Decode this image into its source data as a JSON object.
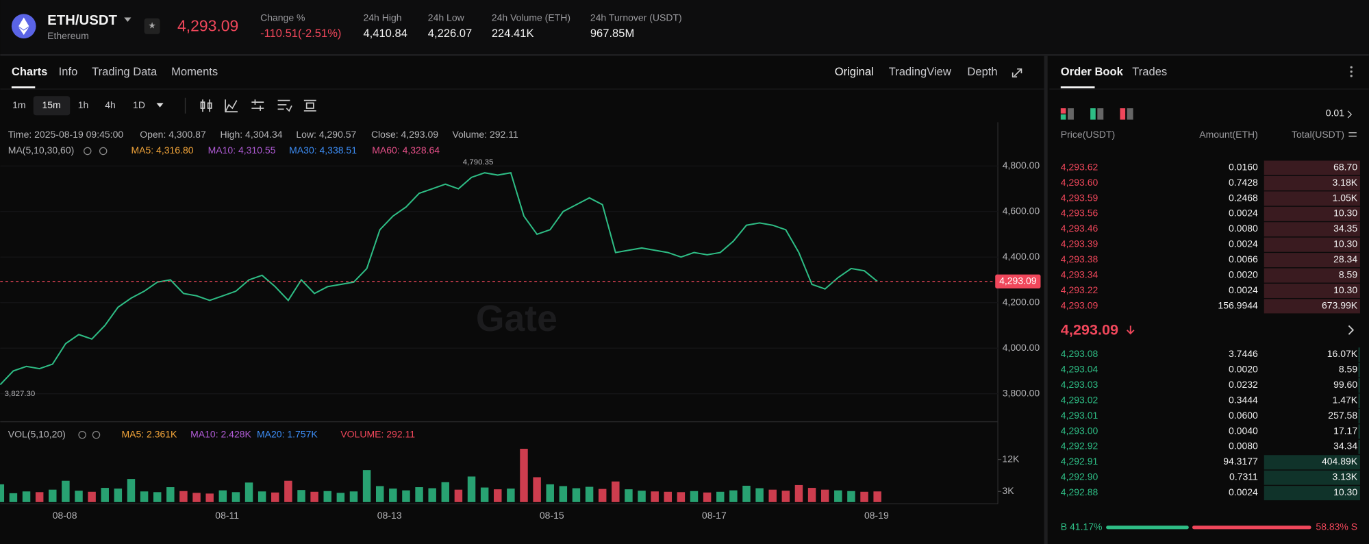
{
  "header": {
    "pair": "ETH/USDT",
    "name": "Ethereum",
    "price": "4,293.09",
    "stats": [
      {
        "label": "Change %",
        "value": "-110.51(-2.51%)"
      },
      {
        "label": "24h High",
        "value": "4,410.84"
      },
      {
        "label": "24h Low",
        "value": "4,226.07"
      },
      {
        "label": "24h Volume (ETH)",
        "value": "224.41K"
      },
      {
        "label": "24h Turnover (USDT)",
        "value": "967.85M"
      }
    ]
  },
  "tabs": [
    "Charts",
    "Info",
    "Trading Data",
    "Moments"
  ],
  "views": [
    "Original",
    "TradingView",
    "Depth"
  ],
  "intervals": [
    "1m",
    "15m",
    "1h",
    "4h",
    "1D"
  ],
  "info": [
    "Time: 2025-08-19 09:45:00",
    "Open: 4,300.87",
    "High: 4,304.34",
    "Low: 4,290.57",
    "Close: 4,293.09",
    "Volume: 292.11"
  ],
  "ma": [
    "MA(5,10,30,60)",
    "MA5: 4,316.80",
    "MA10: 4,310.55",
    "MA30: 4,338.51",
    "MA60: 4,328.64"
  ],
  "vol": [
    "VOL(5,10,20)",
    "MA5: 2.361K",
    "MA10: 2.428K",
    "MA20: 1.757K",
    "VOLUME: 292.11"
  ],
  "watermark": "Gate",
  "chart_data": {
    "type": "line",
    "color": "#2ebd85",
    "x_labels": [
      "08-08",
      "08-11",
      "08-13",
      "08-15",
      "08-17",
      "08-19"
    ],
    "values": [
      3840,
      3900,
      3920,
      3910,
      3930,
      4020,
      4060,
      4040,
      4100,
      4180,
      4220,
      4250,
      4290,
      4300,
      4240,
      4230,
      4210,
      4230,
      4250,
      4300,
      4320,
      4270,
      4210,
      4300,
      4240,
      4270,
      4280,
      4290,
      4350,
      4520,
      4580,
      4620,
      4680,
      4700,
      4720,
      4700,
      4750,
      4770,
      4760,
      4770,
      4580,
      4500,
      4520,
      4600,
      4630,
      4660,
      4630,
      4420,
      4430,
      4440,
      4430,
      4420,
      4400,
      4420,
      4410,
      4420,
      4470,
      4540,
      4550,
      4540,
      4520,
      4420,
      4280,
      4260,
      4310,
      4350,
      4340,
      4293.09
    ],
    "ylim": [
      3677,
      4992
    ],
    "yticks": [
      {
        "value": 3800,
        "label": "3,800.00"
      },
      {
        "value": 4000,
        "label": "4,000.00"
      },
      {
        "value": 4200,
        "label": "4,200.00"
      },
      {
        "value": 4400,
        "label": "4,400.00"
      },
      {
        "value": 4600,
        "label": "4,600.00"
      },
      {
        "value": 4800,
        "label": "4,800.00"
      }
    ],
    "last_price": {
      "value": 4293.09,
      "label": "4,293.09"
    },
    "max_label": "4,790.35",
    "min_label": "3,827.30",
    "volume": {
      "color": "#2ebd85",
      "values": [
        5000,
        2500,
        3000,
        2800,
        3500,
        6000,
        3200,
        2900,
        4000,
        3800,
        6500,
        3000,
        2800,
        4200,
        3100,
        2600,
        2400,
        3300,
        2800,
        5500,
        3000,
        2700,
        6000,
        3400,
        2900,
        3100,
        2600,
        3000,
        9000,
        4500,
        3800,
        3300,
        4200,
        3900,
        5600,
        3500,
        7200,
        4100,
        3600,
        3800,
        15000,
        7000,
        5000,
        4500,
        3900,
        4300,
        3700,
        5800,
        3600,
        3200,
        3000,
        2900,
        2800,
        3100,
        2700,
        2900,
        3300,
        4600,
        3900,
        3500,
        3200,
        4800,
        4000,
        3500,
        3300,
        3100,
        2900,
        3000
      ],
      "ylim": [
        0,
        17200
      ],
      "yticks": [
        {
          "value": 3000,
          "label": "3K"
        },
        {
          "value": 12000,
          "label": "12K"
        }
      ]
    }
  },
  "order_book": {
    "tabs": [
      "Order Book",
      "Trades"
    ],
    "precision": "0.01",
    "columns": [
      "Price(USDT)",
      "Amount(ETH)",
      "Total(USDT)"
    ],
    "asks": [
      [
        "4,293.62",
        "0.0160",
        "68.70"
      ],
      [
        "4,293.60",
        "0.7428",
        "3.18K"
      ],
      [
        "4,293.59",
        "0.2468",
        "1.05K"
      ],
      [
        "4,293.56",
        "0.0024",
        "10.30"
      ],
      [
        "4,293.46",
        "0.0080",
        "34.35"
      ],
      [
        "4,293.39",
        "0.0024",
        "10.30"
      ],
      [
        "4,293.38",
        "0.0066",
        "28.34"
      ],
      [
        "4,293.34",
        "0.0020",
        "8.59"
      ],
      [
        "4,293.22",
        "0.0024",
        "10.30"
      ],
      [
        "4,293.09",
        "156.9944",
        "673.99K"
      ]
    ],
    "last": "4,293.09",
    "bids": [
      [
        "4,293.08",
        "3.7446",
        "16.07K"
      ],
      [
        "4,293.04",
        "0.0020",
        "8.59"
      ],
      [
        "4,293.03",
        "0.0232",
        "99.60"
      ],
      [
        "4,293.02",
        "0.3444",
        "1.47K"
      ],
      [
        "4,293.01",
        "0.0600",
        "257.58"
      ],
      [
        "4,293.00",
        "0.0040",
        "17.17"
      ],
      [
        "4,292.92",
        "0.0080",
        "34.34"
      ],
      [
        "4,292.91",
        "94.3177",
        "404.89K"
      ],
      [
        "4,292.90",
        "0.7311",
        "3.13K"
      ],
      [
        "4,292.88",
        "0.0024",
        "10.30"
      ]
    ],
    "ratio": {
      "buy": 41.17,
      "buy_label": "B 41.17%",
      "sell": 58.83,
      "sell_label": "58.83% S"
    }
  }
}
